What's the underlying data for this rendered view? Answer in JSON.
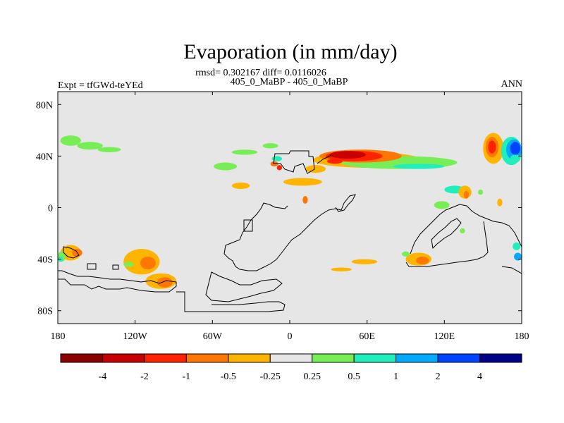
{
  "chart_data": {
    "type": "heatmap",
    "title": "Evaporation (in mm/day)",
    "stats": "rmsd= 0.302167 diff= 0.0116026",
    "subtitle": "405_0_MaBP - 405_0_MaBP",
    "left_label": "Expt = tfGWd-teYEd",
    "right_label": "ANN",
    "x_range": [
      -180,
      180
    ],
    "y_range": [
      -90,
      90
    ],
    "x_ticks": [
      {
        "value": -180,
        "label": "180"
      },
      {
        "value": -120,
        "label": "120W"
      },
      {
        "value": -60,
        "label": "60W"
      },
      {
        "value": 0,
        "label": "0"
      },
      {
        "value": 60,
        "label": "60E"
      },
      {
        "value": 120,
        "label": "120E"
      },
      {
        "value": 180,
        "label": "180"
      }
    ],
    "y_ticks": [
      {
        "value": 80,
        "label": "80N"
      },
      {
        "value": 40,
        "label": "40N"
      },
      {
        "value": 0,
        "label": "0"
      },
      {
        "value": -40,
        "label": "40S"
      },
      {
        "value": -80,
        "label": "80S"
      }
    ],
    "colorbar": {
      "colors": [
        "#8b0000",
        "#c80000",
        "#ff2200",
        "#ff7700",
        "#ffb400",
        "#e6e6e6",
        "#77ee55",
        "#22eebb",
        "#00aaff",
        "#0044ff",
        "#000088"
      ],
      "labels": [
        "-4",
        "-2",
        "-1",
        "-0.5",
        "-0.25",
        "0.25",
        "0.5",
        "1",
        "2",
        "4"
      ]
    },
    "anomalies": [
      {
        "lon": -170,
        "lat": 52,
        "rx": 8,
        "ry": 4,
        "level": 6
      },
      {
        "lon": -155,
        "lat": 48,
        "rx": 10,
        "ry": 3,
        "level": 6
      },
      {
        "lon": -140,
        "lat": 45,
        "rx": 9,
        "ry": 2,
        "level": 6
      },
      {
        "lon": -50,
        "lat": 32,
        "rx": 9,
        "ry": 3,
        "level": 6
      },
      {
        "lon": -35,
        "lat": 43,
        "rx": 10,
        "ry": 2,
        "level": 6
      },
      {
        "lon": -15,
        "lat": 48,
        "rx": 6,
        "ry": 2,
        "level": 6
      },
      {
        "lon": -10,
        "lat": 38,
        "rx": 4,
        "ry": 2,
        "level": 7
      },
      {
        "lon": -12,
        "lat": 34,
        "rx": 3,
        "ry": 2,
        "level": 3
      },
      {
        "lon": -8,
        "lat": 31,
        "rx": 2,
        "ry": 2,
        "level": 2
      },
      {
        "lon": -38,
        "lat": 17,
        "rx": 7,
        "ry": 2.5,
        "level": 4
      },
      {
        "lon": 10,
        "lat": 20,
        "rx": 15,
        "ry": 3,
        "level": 4
      },
      {
        "lon": 20,
        "lat": 30,
        "rx": 8,
        "ry": 3,
        "level": 4
      },
      {
        "lon": 12,
        "lat": 6,
        "rx": 2,
        "ry": 3,
        "level": 3
      },
      {
        "lon": 60,
        "lat": 37,
        "rx": 42,
        "ry": 6,
        "level": 4
      },
      {
        "lon": 85,
        "lat": 35,
        "rx": 45,
        "ry": 5,
        "level": 6
      },
      {
        "lon": 100,
        "lat": 32,
        "rx": 20,
        "ry": 2,
        "level": 7
      },
      {
        "lon": 55,
        "lat": 40,
        "rx": 32,
        "ry": 5,
        "level": 3
      },
      {
        "lon": 50,
        "lat": 40,
        "rx": 22,
        "ry": 4,
        "level": 2
      },
      {
        "lon": 45,
        "lat": 41,
        "rx": 14,
        "ry": 3,
        "level": 1
      },
      {
        "lon": 35,
        "lat": 36,
        "rx": 6,
        "ry": 2,
        "level": 2
      },
      {
        "lon": 128,
        "lat": 14,
        "rx": 8,
        "ry": 3,
        "level": 7
      },
      {
        "lon": 136,
        "lat": 12,
        "rx": 5,
        "ry": 5,
        "level": 4
      },
      {
        "lon": 137,
        "lat": 10,
        "rx": 2,
        "ry": 3,
        "level": 3
      },
      {
        "lon": 118,
        "lat": 2,
        "rx": 6,
        "ry": 3,
        "level": 6
      },
      {
        "lon": 148,
        "lat": 12,
        "rx": 2,
        "ry": 2,
        "level": 6
      },
      {
        "lon": 163,
        "lat": 4,
        "rx": 2,
        "ry": 3,
        "level": 4
      },
      {
        "lon": 134,
        "lat": -18,
        "rx": 2,
        "ry": 2,
        "level": 6
      },
      {
        "lon": 158,
        "lat": 46,
        "rx": 8,
        "ry": 12,
        "level": 4
      },
      {
        "lon": 157,
        "lat": 47,
        "rx": 5,
        "ry": 8,
        "level": 3
      },
      {
        "lon": 157,
        "lat": 47,
        "rx": 3,
        "ry": 5,
        "level": 2
      },
      {
        "lon": 172,
        "lat": 44,
        "rx": 8,
        "ry": 11,
        "level": 7
      },
      {
        "lon": 174,
        "lat": 45,
        "rx": 6,
        "ry": 8,
        "level": 8
      },
      {
        "lon": 175,
        "lat": 46,
        "rx": 4,
        "ry": 5,
        "level": 9
      },
      {
        "lon": 175,
        "lat": 38,
        "rx": 4,
        "ry": 3,
        "level": 7
      },
      {
        "lon": 176,
        "lat": -30,
        "rx": 3,
        "ry": 3,
        "level": 7
      },
      {
        "lon": 177,
        "lat": -38,
        "rx": 3,
        "ry": 3,
        "level": 8
      },
      {
        "lon": -170,
        "lat": -35,
        "rx": 8,
        "ry": 6,
        "level": 4
      },
      {
        "lon": -165,
        "lat": -35,
        "rx": 4,
        "ry": 3,
        "level": 3
      },
      {
        "lon": -177,
        "lat": -38,
        "rx": 3,
        "ry": 4,
        "level": 6
      },
      {
        "lon": -178,
        "lat": -40,
        "rx": 2,
        "ry": 2,
        "level": 7
      },
      {
        "lon": -115,
        "lat": -42,
        "rx": 14,
        "ry": 10,
        "level": 4
      },
      {
        "lon": -110,
        "lat": -43,
        "rx": 6,
        "ry": 5,
        "level": 3
      },
      {
        "lon": -100,
        "lat": -57,
        "rx": 12,
        "ry": 6,
        "level": 4
      },
      {
        "lon": -97,
        "lat": -58,
        "rx": 6,
        "ry": 4,
        "level": 3
      },
      {
        "lon": 100,
        "lat": -40,
        "rx": 10,
        "ry": 5,
        "level": 4
      },
      {
        "lon": 103,
        "lat": -41,
        "rx": 5,
        "ry": 3,
        "level": 3
      },
      {
        "lon": 90,
        "lat": -36,
        "rx": 3,
        "ry": 2,
        "level": 6
      },
      {
        "lon": 58,
        "lat": -42,
        "rx": 10,
        "ry": 2,
        "level": 4
      },
      {
        "lon": 40,
        "lat": -48,
        "rx": 8,
        "ry": 1.5,
        "level": 4
      },
      {
        "lon": -125,
        "lat": -44,
        "rx": 4,
        "ry": 2,
        "level": 6
      }
    ]
  }
}
